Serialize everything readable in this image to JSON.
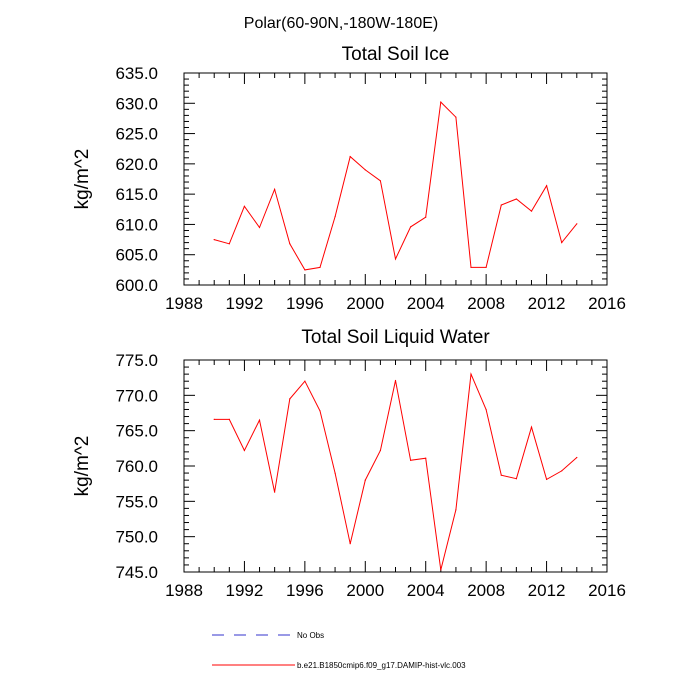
{
  "suptitle": "Polar(60-90N,-180W-180E)",
  "legend": [
    {
      "label": "No Obs",
      "color": "#3333cc",
      "style": "dashed"
    },
    {
      "label": "b.e21.B1850cmip6.f09_g17.DAMIP-hist-vlc.003",
      "color": "#ff0000",
      "style": "solid"
    }
  ],
  "chart_data": [
    {
      "type": "line",
      "title": "Total Soil Ice",
      "xlabel": "",
      "ylabel": "kg/m^2",
      "xlim": [
        1988,
        2016
      ],
      "ylim": [
        600,
        635
      ],
      "xticks": [
        1988,
        1992,
        1996,
        2000,
        2004,
        2008,
        2012,
        2016
      ],
      "xtick_labels": [
        "1988",
        "1992",
        "1996",
        "2000",
        "2004",
        "2008",
        "2012",
        "2016"
      ],
      "yticks": [
        600,
        605,
        610,
        615,
        620,
        625,
        630,
        635
      ],
      "ytick_labels": [
        "600.0",
        "605.0",
        "610.0",
        "615.0",
        "620.0",
        "625.0",
        "630.0",
        "635.0"
      ],
      "series": [
        {
          "name": "b.e21.B1850cmip6.f09_g17.DAMIP-hist-vlc.003",
          "color": "#ff0000",
          "x": [
            1990,
            1991,
            1992,
            1993,
            1994,
            1995,
            1996,
            1997,
            1998,
            1999,
            2000,
            2001,
            2002,
            2003,
            2004,
            2005,
            2006,
            2007,
            2008,
            2009,
            2010,
            2011,
            2012,
            2013,
            2014
          ],
          "y": [
            607.5,
            606.8,
            613.0,
            609.5,
            615.8,
            606.8,
            602.5,
            602.9,
            611.3,
            621.2,
            619.0,
            617.2,
            604.3,
            609.6,
            611.2,
            630.2,
            627.7,
            602.9,
            602.9,
            613.2,
            614.2,
            612.2,
            616.4,
            607.0,
            610.1
          ]
        }
      ]
    },
    {
      "type": "line",
      "title": "Total Soil Liquid Water",
      "xlabel": "",
      "ylabel": "kg/m^2",
      "xlim": [
        1988,
        2016
      ],
      "ylim": [
        745,
        775
      ],
      "xticks": [
        1988,
        1992,
        1996,
        2000,
        2004,
        2008,
        2012,
        2016
      ],
      "xtick_labels": [
        "1988",
        "1992",
        "1996",
        "2000",
        "2004",
        "2008",
        "2012",
        "2016"
      ],
      "yticks": [
        745,
        750,
        755,
        760,
        765,
        770,
        775
      ],
      "ytick_labels": [
        "745.0",
        "750.0",
        "755.0",
        "760.0",
        "765.0",
        "770.0",
        "775.0"
      ],
      "series": [
        {
          "name": "b.e21.B1850cmip6.f09_g17.DAMIP-hist-vlc.003",
          "color": "#ff0000",
          "x": [
            1990,
            1991,
            1992,
            1993,
            1994,
            1995,
            1996,
            1997,
            1998,
            1999,
            2000,
            2001,
            2002,
            2003,
            2004,
            2005,
            2006,
            2007,
            2008,
            2009,
            2010,
            2011,
            2012,
            2013,
            2014
          ],
          "y": [
            766.6,
            766.6,
            762.2,
            766.5,
            756.3,
            769.5,
            772.0,
            767.8,
            759.0,
            749.0,
            758.0,
            762.2,
            772.1,
            760.8,
            761.1,
            745.3,
            753.8,
            773.0,
            768.0,
            758.7,
            758.2,
            765.5,
            758.1,
            759.3,
            761.2
          ]
        }
      ]
    }
  ]
}
